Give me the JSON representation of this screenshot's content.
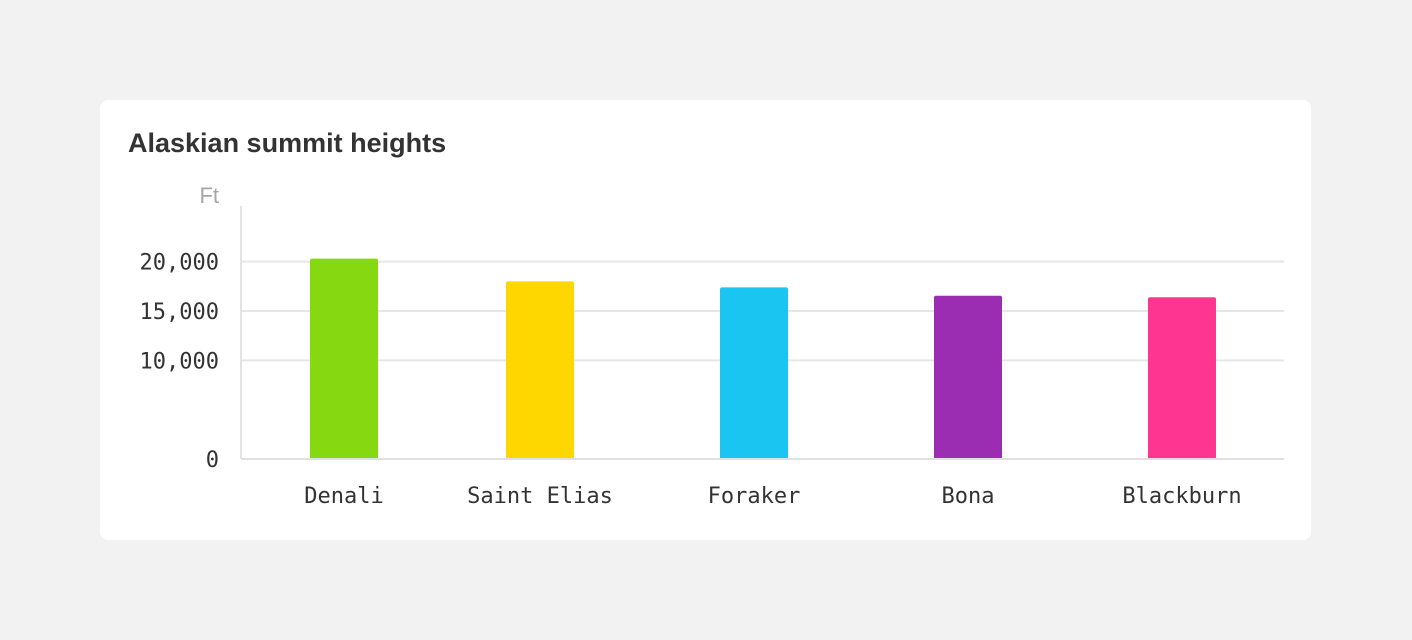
{
  "chart_data": {
    "type": "bar",
    "title": "Alaskian summit heights",
    "ylabel": "Ft",
    "xlabel": "",
    "categories": [
      "Denali",
      "Saint Elias",
      "Foraker",
      "Bona",
      "Blackburn"
    ],
    "values": [
      20310,
      18008,
      17400,
      16550,
      16390
    ],
    "colors": [
      "#86d911",
      "#ffd700",
      "#1bc5f2",
      "#9b2db3",
      "#ff3691"
    ],
    "yticks": [
      0,
      10000,
      15000,
      20000
    ],
    "ytick_labels": [
      "0",
      "10,000",
      "15,000",
      "20,000"
    ],
    "grid": true,
    "legend": "none"
  }
}
